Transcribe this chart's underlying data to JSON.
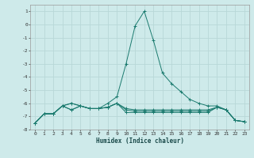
{
  "title": "",
  "xlabel": "Humidex (Indice chaleur)",
  "background_color": "#ceeaea",
  "grid_color": "#b8d8d8",
  "line_color": "#1a7a6e",
  "x_values": [
    0,
    1,
    2,
    3,
    4,
    5,
    6,
    7,
    8,
    9,
    10,
    11,
    12,
    13,
    14,
    15,
    16,
    17,
    18,
    19,
    20,
    21,
    22,
    23
  ],
  "series": [
    [
      -7.5,
      -6.8,
      -6.8,
      -6.2,
      -6.0,
      -6.2,
      -6.4,
      -6.4,
      -6.0,
      -5.5,
      -3.0,
      -0.1,
      1.0,
      -1.2,
      -3.7,
      -4.5,
      -5.1,
      -5.7,
      -6.0,
      -6.2,
      -6.2,
      -6.5,
      -7.3,
      -7.4
    ],
    [
      -7.5,
      -6.8,
      -6.8,
      -6.2,
      -6.0,
      -6.2,
      -6.4,
      -6.4,
      -6.3,
      -6.0,
      -6.4,
      -6.5,
      -6.5,
      -6.5,
      -6.5,
      -6.5,
      -6.5,
      -6.5,
      -6.5,
      -6.5,
      -6.3,
      -6.5,
      -7.3,
      -7.4
    ],
    [
      -7.5,
      -6.8,
      -6.8,
      -6.2,
      -6.5,
      -6.2,
      -6.4,
      -6.4,
      -6.3,
      -6.0,
      -6.5,
      -6.6,
      -6.6,
      -6.6,
      -6.6,
      -6.6,
      -6.6,
      -6.6,
      -6.6,
      -6.6,
      -6.3,
      -6.5,
      -7.3,
      -7.4
    ],
    [
      -7.5,
      -6.8,
      -6.8,
      -6.2,
      -6.5,
      -6.2,
      -6.4,
      -6.4,
      -6.3,
      -6.0,
      -6.7,
      -6.7,
      -6.7,
      -6.7,
      -6.7,
      -6.7,
      -6.7,
      -6.7,
      -6.7,
      -6.7,
      -6.3,
      -6.5,
      -7.3,
      -7.4
    ]
  ],
  "ylim": [
    -8.0,
    1.5
  ],
  "xlim": [
    -0.5,
    23.5
  ],
  "yticks": [
    1,
    0,
    -1,
    -2,
    -3,
    -4,
    -5,
    -6,
    -7,
    -8
  ],
  "xticks": [
    0,
    1,
    2,
    3,
    4,
    5,
    6,
    7,
    8,
    9,
    10,
    11,
    12,
    13,
    14,
    15,
    16,
    17,
    18,
    19,
    20,
    21,
    22,
    23
  ]
}
